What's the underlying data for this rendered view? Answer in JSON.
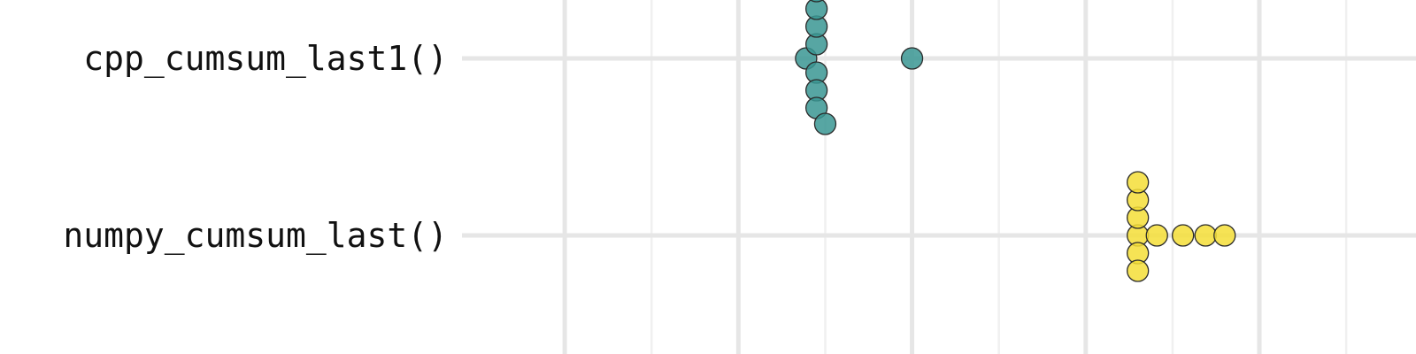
{
  "chart_data": {
    "type": "scatter",
    "subtype": "beeswarm",
    "orientation": "horizontal",
    "grid": true,
    "xlim": [
      55,
      108
    ],
    "x_major_gridlines": [
      60,
      70,
      80,
      90,
      100
    ],
    "x_minor_gridlines": [
      65,
      75,
      85,
      95,
      105
    ],
    "categories": [
      "cpp_cumsum_last1()",
      "numpy_cumsum_last()"
    ],
    "series": [
      {
        "category": "cpp_cumsum_last1()",
        "color": "#3a9693",
        "values": [
          74.5,
          74.5,
          73.9,
          74.5,
          74.5,
          74.5,
          74.5,
          74.5,
          75.0,
          80.0
        ]
      },
      {
        "category": "numpy_cumsum_last()",
        "color": "#f5de37",
        "values": [
          93.0,
          93.0,
          93.0,
          93.0,
          93.0,
          93.0,
          94.1,
          95.6,
          96.9,
          98.0
        ]
      }
    ]
  }
}
